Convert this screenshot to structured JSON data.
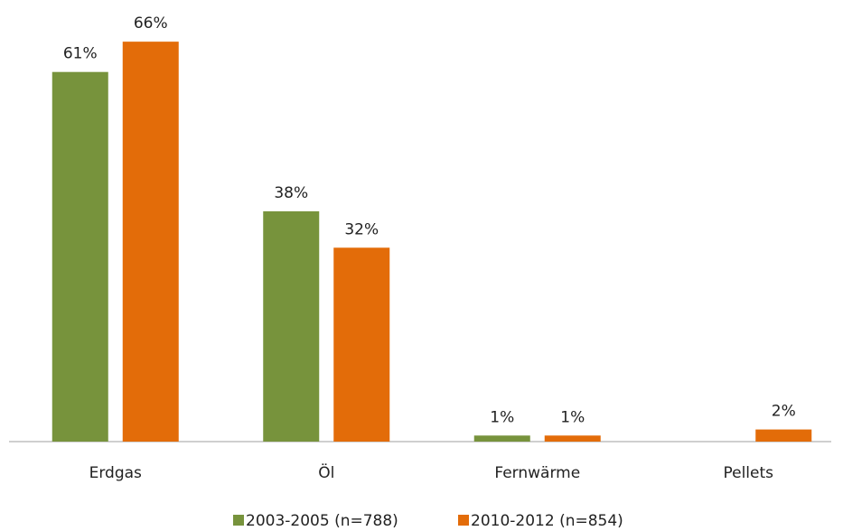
{
  "chart_data": {
    "type": "bar",
    "categories": [
      "Erdgas",
      "Öl",
      "Fernwärme",
      "Pellets"
    ],
    "series": [
      {
        "name": "2003-2005 (n=788)",
        "color": "#77933c",
        "values": [
          61,
          38,
          1,
          null
        ],
        "value_labels": [
          "61%",
          "38%",
          "1%",
          null
        ]
      },
      {
        "name": "2010-2012 (n=854)",
        "color": "#e36c09",
        "values": [
          66,
          32,
          1,
          2
        ],
        "value_labels": [
          "66%",
          "32%",
          "1%",
          "2%"
        ]
      }
    ],
    "legend": "bottom"
  }
}
